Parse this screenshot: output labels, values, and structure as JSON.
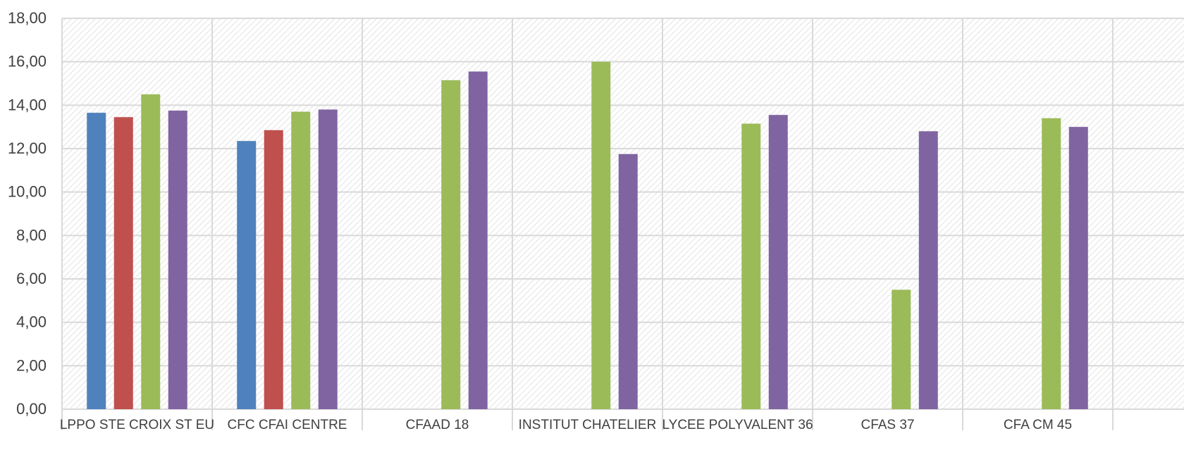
{
  "chart_data": {
    "type": "bar",
    "title": "",
    "xlabel": "",
    "ylabel": "",
    "ylim": [
      0,
      18
    ],
    "yticks": [
      "0,00",
      "2,00",
      "4,00",
      "6,00",
      "8,00",
      "10,00",
      "12,00",
      "14,00",
      "16,00",
      "18,00"
    ],
    "ytick_values": [
      0,
      2,
      4,
      6,
      8,
      10,
      12,
      14,
      16,
      18
    ],
    "grid": true,
    "legend": "none",
    "categories": [
      "LPPO STE CROIX ST EU",
      "CFC CFAI CENTRE",
      "CFAAD 18",
      "INSTITUT CHATELIER",
      "LYCEE POLYVALENT 36",
      "CFAS 37",
      "CFA CM 45"
    ],
    "series": [
      {
        "color": "#4f81bd",
        "values": [
          13.65,
          12.35,
          null,
          null,
          null,
          null,
          null
        ]
      },
      {
        "color": "#c0504d",
        "values": [
          13.45,
          12.85,
          null,
          null,
          null,
          null,
          null
        ]
      },
      {
        "color": "#9bbb59",
        "values": [
          14.5,
          13.7,
          15.15,
          16.0,
          13.15,
          5.5,
          13.4
        ]
      },
      {
        "color": "#8064a2",
        "values": [
          13.75,
          13.8,
          15.55,
          11.75,
          13.55,
          12.8,
          13.0
        ]
      }
    ]
  }
}
